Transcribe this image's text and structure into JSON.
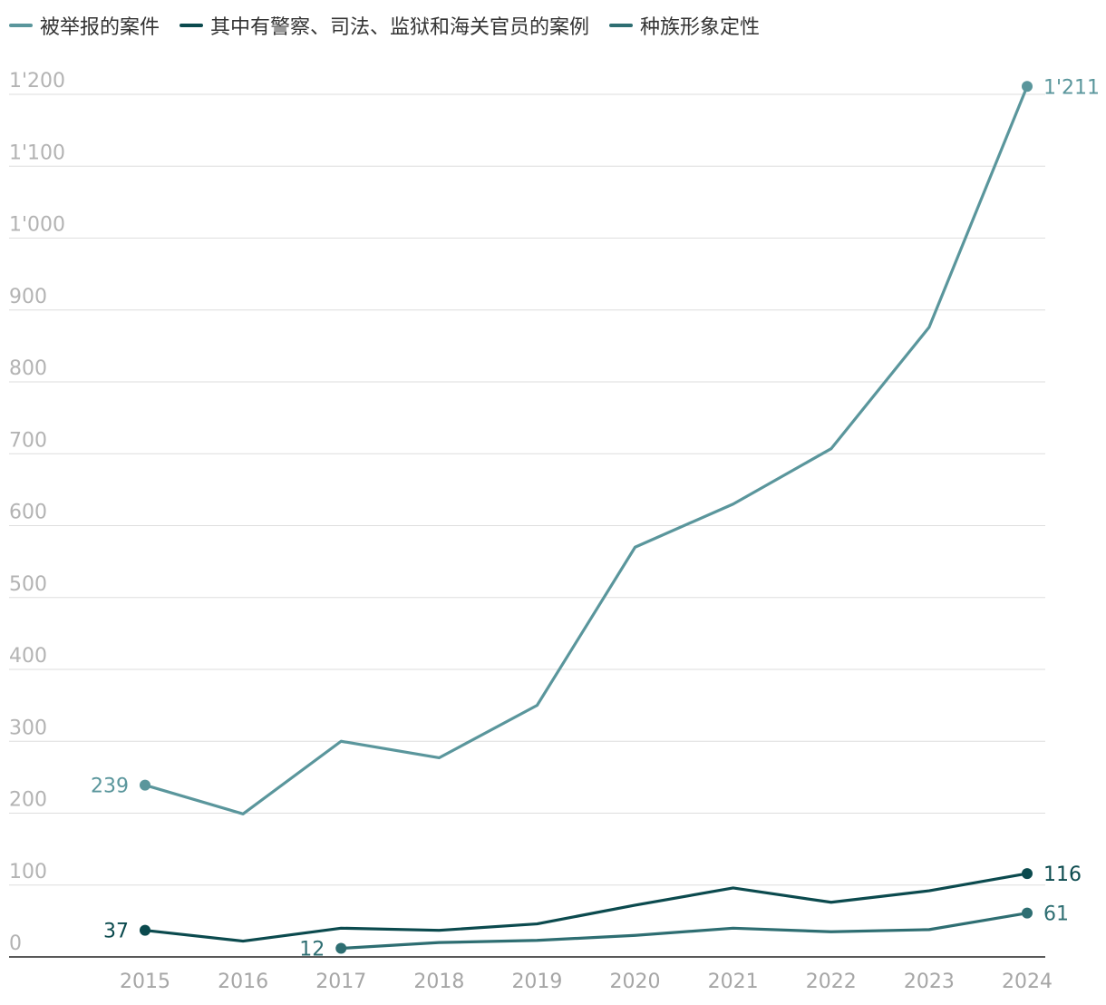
{
  "chart_data": {
    "type": "line",
    "title": "",
    "xlabel": "",
    "ylabel": "",
    "x": [
      "2015",
      "2016",
      "2017",
      "2018",
      "2019",
      "2020",
      "2021",
      "2022",
      "2023",
      "2024"
    ],
    "ylim": [
      0,
      1200
    ],
    "y_ticks": [
      0,
      100,
      200,
      300,
      400,
      500,
      600,
      700,
      800,
      900,
      1000,
      1100,
      1200
    ],
    "y_tick_labels": [
      "0",
      "100",
      "200",
      "300",
      "400",
      "500",
      "600",
      "700",
      "800",
      "900",
      "1'000",
      "1'100",
      "1'200"
    ],
    "grid": true,
    "legend_position": "top-left",
    "series": [
      {
        "name": "被举报的案件",
        "color": "#5a969c",
        "values": [
          239,
          199,
          300,
          277,
          350,
          570,
          630,
          707,
          876,
          1211
        ],
        "start_label": "239",
        "end_label": "1'211"
      },
      {
        "name": "其中有警察、司法、监狱和海关官员的案例",
        "color": "#0b4a4e",
        "values": [
          37,
          22,
          40,
          37,
          46,
          72,
          96,
          76,
          92,
          116
        ],
        "start_label": "37",
        "end_label": "116"
      },
      {
        "name": "种族形象定性",
        "color": "#2e6e72",
        "values": [
          null,
          null,
          12,
          20,
          23,
          30,
          40,
          35,
          38,
          61
        ],
        "start_label": "12",
        "end_label": "61"
      }
    ]
  },
  "colors": {
    "grid": "#dedede",
    "axis": "#222222",
    "tick_text": "#b3b3b3",
    "x_tick_text": "#a6a6a6"
  }
}
